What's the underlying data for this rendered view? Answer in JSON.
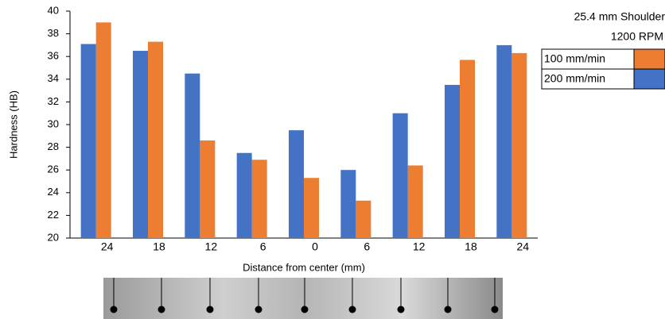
{
  "chart_data": {
    "type": "bar",
    "y_label": "Hardness (HB)",
    "x_label": "Distance from center (mm)",
    "legend_title": "25.4 mm Shoulder",
    "legend_subtitle": "1200 RPM",
    "categories": [
      "24",
      "18",
      "12",
      "6",
      "0",
      "6",
      "12",
      "18",
      "24"
    ],
    "series": [
      {
        "name": "100 mm/min",
        "color": "#ed7d31",
        "values": [
          39,
          37.3,
          28.6,
          26.9,
          25.3,
          23.3,
          26.4,
          35.7,
          36.3
        ]
      },
      {
        "name": "200 mm/min",
        "color": "#4472c4",
        "values": [
          37.1,
          36.5,
          34.5,
          27.5,
          29.5,
          26,
          31,
          33.5,
          37
        ]
      }
    ],
    "ylim": [
      20,
      40
    ],
    "yticks": [
      20,
      22,
      24,
      26,
      28,
      30,
      32,
      34,
      36,
      38,
      40
    ],
    "grid": false,
    "legend_position": "upper right"
  }
}
